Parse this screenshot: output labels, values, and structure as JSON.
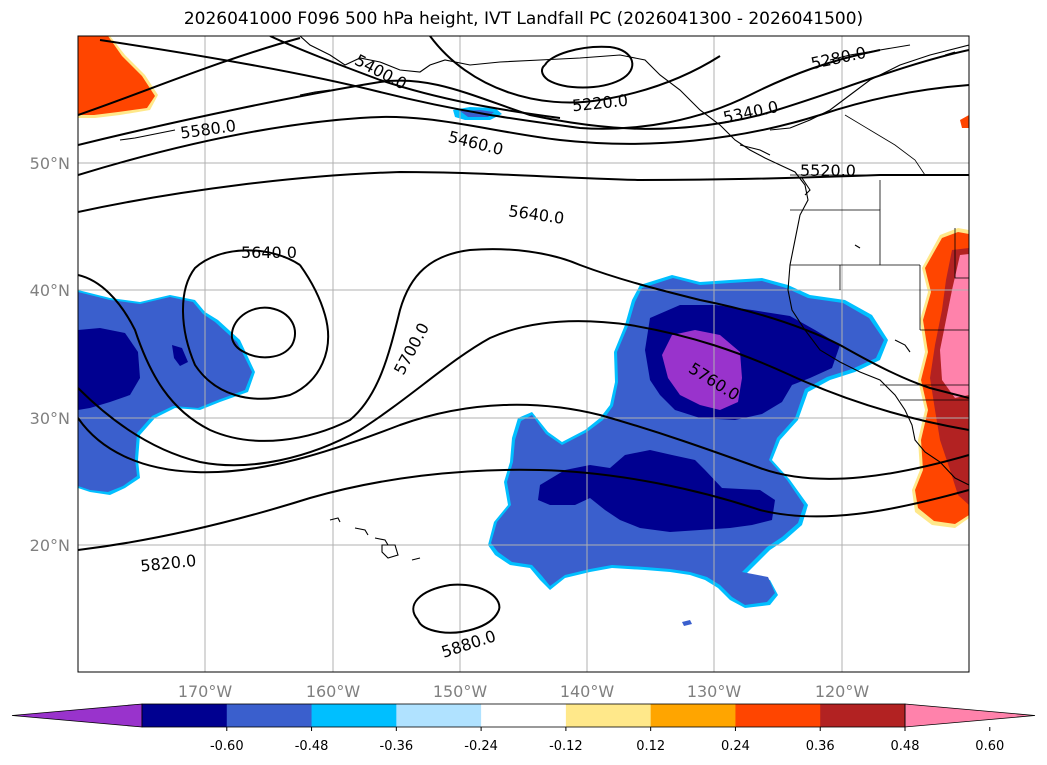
{
  "title": "2026041000 F096 500 hPa height, IVT Landfall PC (2026041300 - 2026041500)",
  "lon_labels": [
    "170°W",
    "160°W",
    "150°W",
    "140°W",
    "130°W",
    "120°W"
  ],
  "lat_labels": [
    "50°N",
    "40°N",
    "30°N",
    "20°N"
  ],
  "contour_labels": [
    "5280.0",
    "5220.0",
    "5340.0",
    "5400.0",
    "5580.0",
    "5460.0",
    "5520.0",
    "5640.0",
    "5640.0",
    "5700.0",
    "5760.0",
    "5820.0",
    "5880.0"
  ],
  "colorbar": {
    "tick_labels": [
      "-0.60",
      "-0.48",
      "-0.36",
      "-0.24",
      "-0.12",
      "0.12",
      "0.24",
      "0.36",
      "0.48",
      "0.60"
    ],
    "colors": [
      "#9933cc",
      "#000090",
      "#3a5fcd",
      "#00bfff",
      "#b0e2ff",
      "#ffffff",
      "#ffe88a",
      "#ffa500",
      "#ff4500",
      "#b22222",
      "#ff82ab"
    ]
  }
}
